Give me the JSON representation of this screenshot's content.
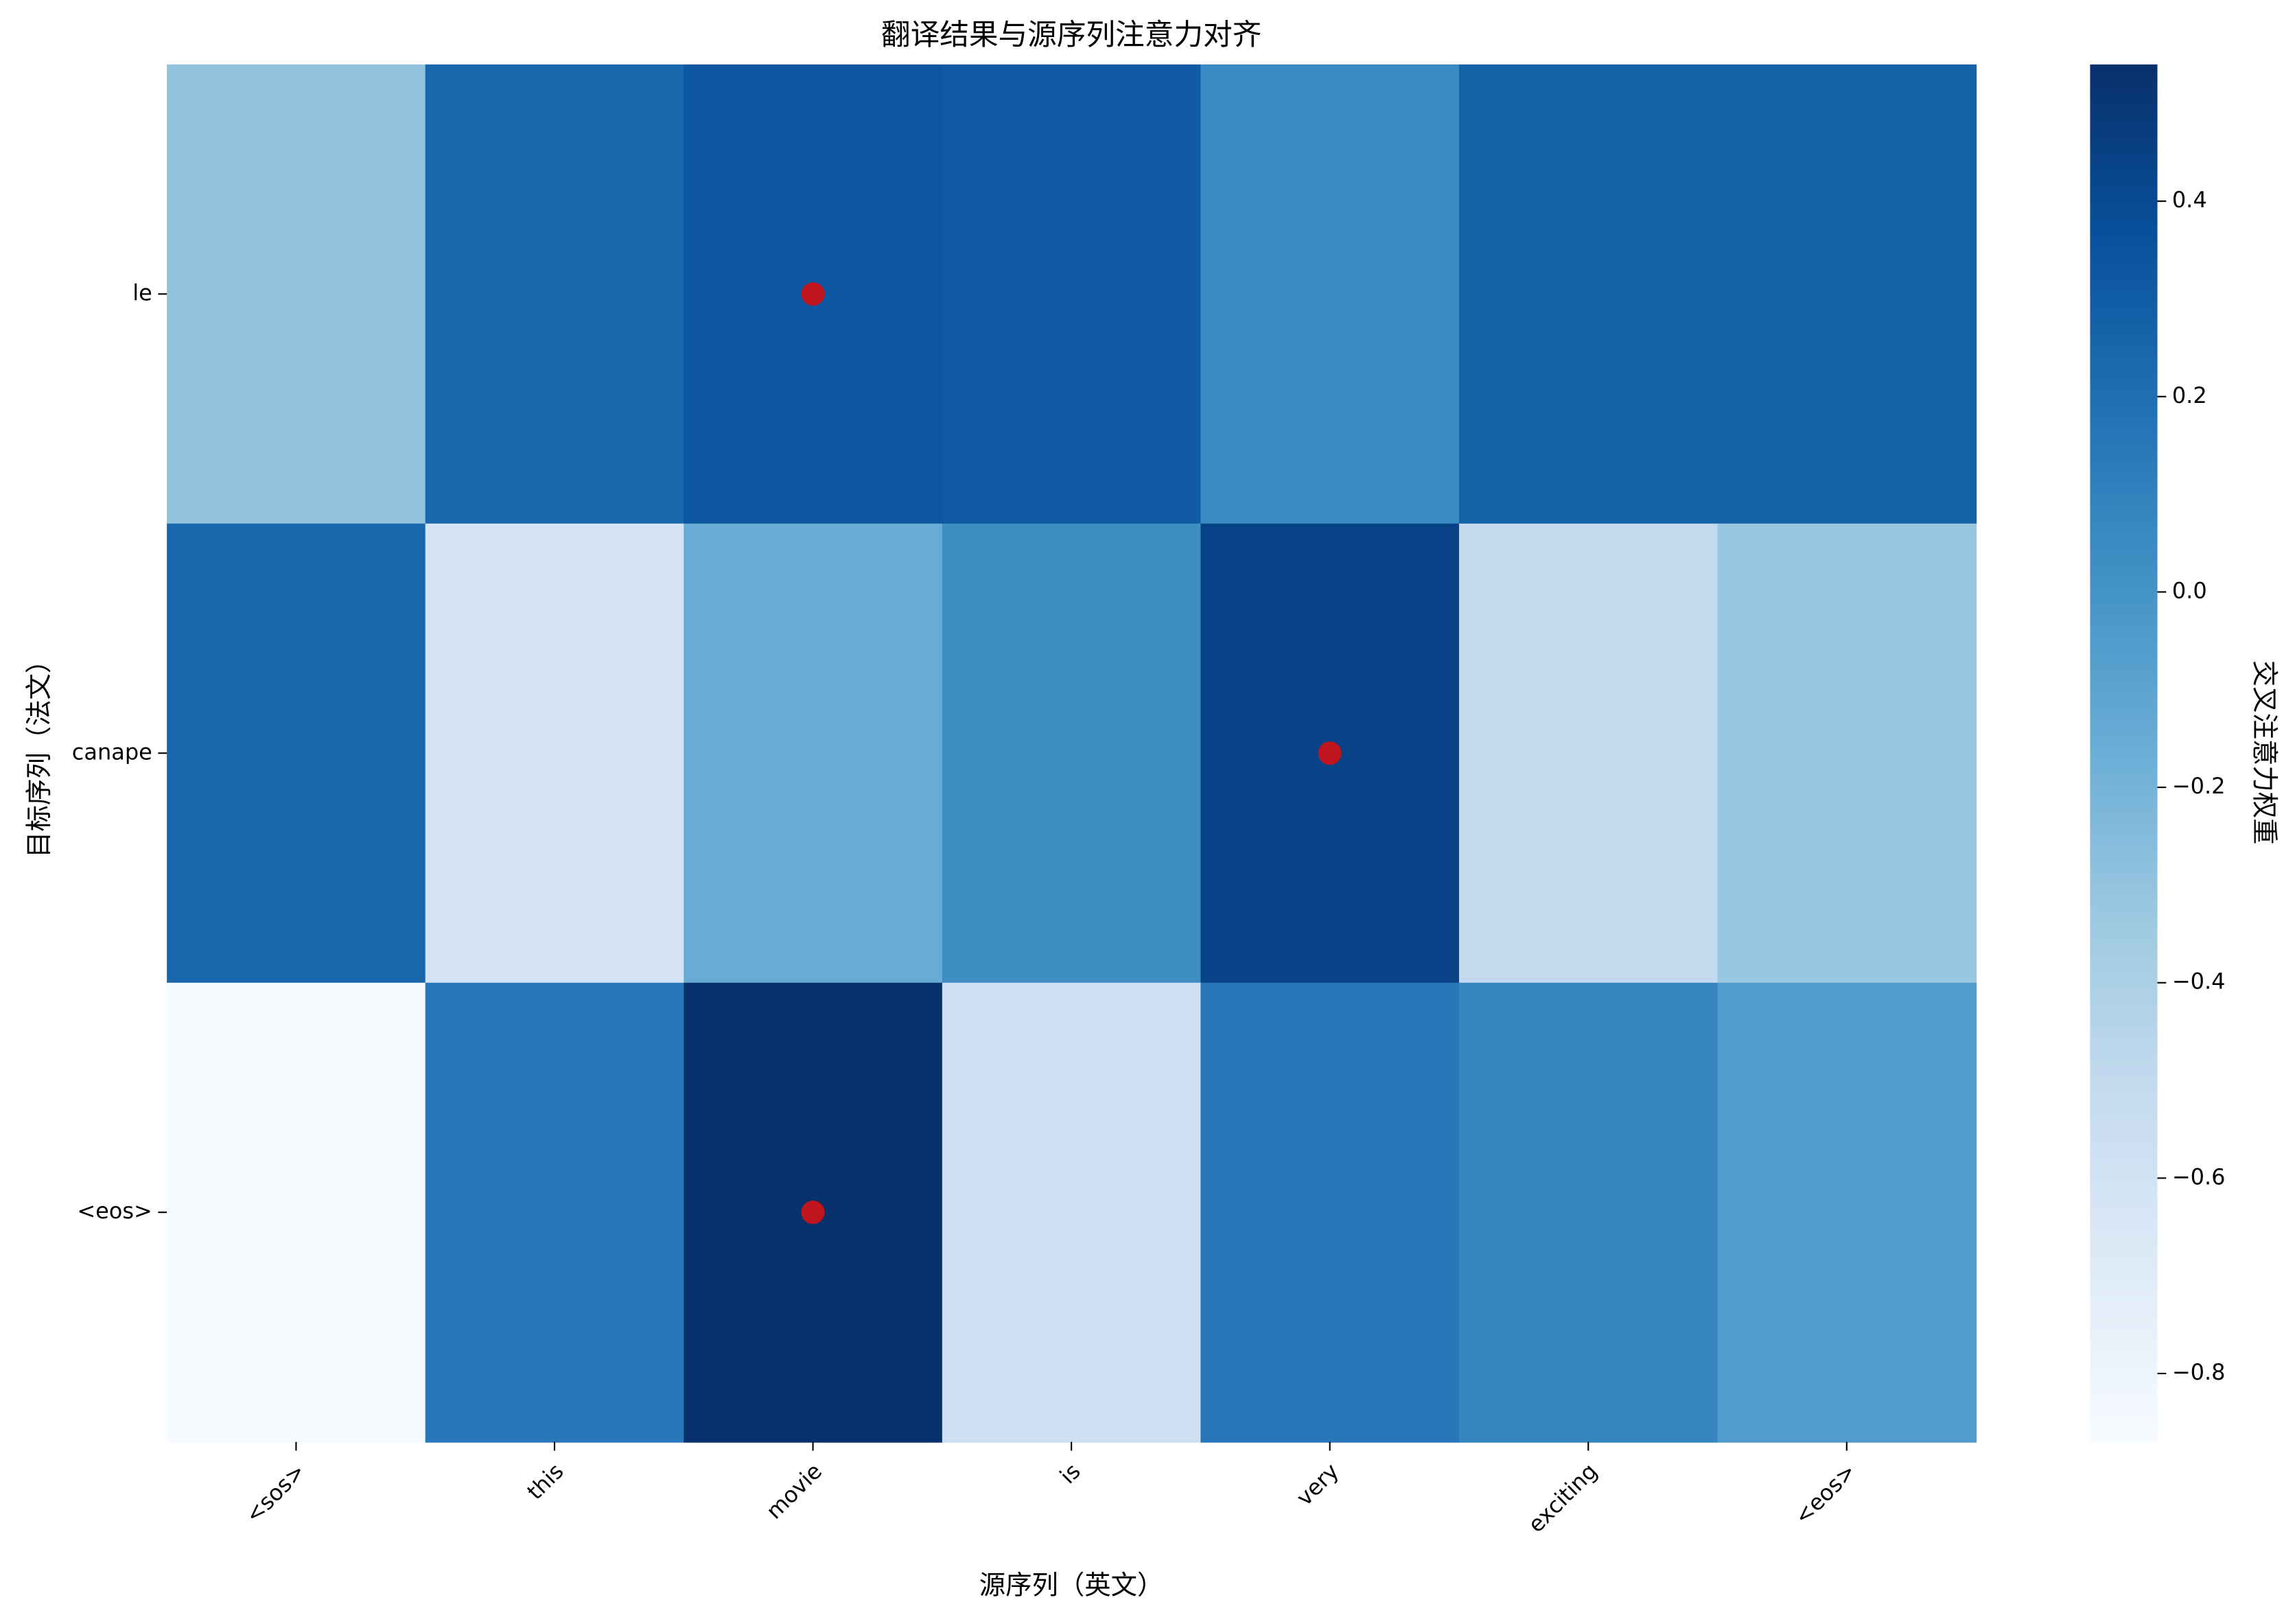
{
  "chart_data": {
    "type": "heatmap",
    "title": "翻译结果与源序列注意力对齐",
    "xlabel": "源序列（英文）",
    "ylabel": "目标序列（法文）",
    "x_categories": [
      "<sos>",
      "this",
      "movie",
      "is",
      "very",
      "exciting",
      "<eos>"
    ],
    "y_categories": [
      "le",
      "canape",
      "<eos>"
    ],
    "values": [
      [
        -0.3,
        0.25,
        0.33,
        0.31,
        0.05,
        0.27,
        0.27
      ],
      [
        0.25,
        -0.62,
        -0.15,
        0.03,
        0.44,
        -0.5,
        -0.32
      ],
      [
        -0.87,
        0.15,
        0.54,
        -0.57,
        0.16,
        0.08,
        -0.05
      ]
    ],
    "colormap": "Blues",
    "row_max_marker": true,
    "marker_color": "#c0141f",
    "colorbar": {
      "label": "交叉注意力权重",
      "lim": [
        -0.87,
        0.54
      ],
      "ticks": [
        0.4,
        0.2,
        {
          "value": 0,
          "label": "0.0"
        },
        {
          "value": -0.2,
          "label": "−0.2"
        },
        {
          "value": -0.4,
          "label": "−0.4"
        },
        {
          "value": -0.6,
          "label": "−0.6"
        },
        {
          "value": -0.8,
          "label": "−0.8"
        }
      ]
    }
  }
}
